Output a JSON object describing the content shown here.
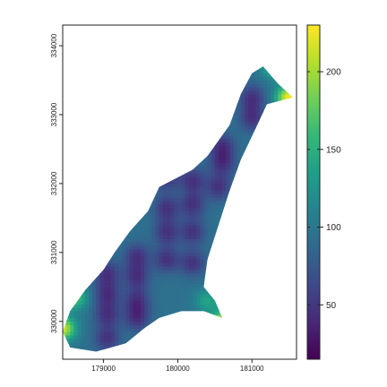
{
  "chart_data": {
    "type": "heatmap",
    "title": "",
    "xlabel": "",
    "ylabel": "",
    "xlim": [
      178450,
      181600
    ],
    "ylim": [
      329450,
      334300
    ],
    "x_ticks": [
      179000,
      180000,
      181000
    ],
    "x_tick_labels": [
      "179000",
      "180000",
      "181000"
    ],
    "y_ticks": [
      330000,
      331000,
      332000,
      333000,
      334000
    ],
    "y_tick_labels": [
      "330000",
      "331000",
      "332000",
      "333000",
      "334000"
    ],
    "colorbar": {
      "min": 15,
      "max": 230,
      "ticks": [
        50,
        100,
        150,
        200
      ],
      "tick_labels": [
        "50",
        "100",
        "150",
        "200"
      ],
      "colormap": [
        "#440154",
        "#482878",
        "#3e4989",
        "#31688e",
        "#26828e",
        "#1f9e89",
        "#35b779",
        "#6ece58",
        "#b5de2b",
        "#fde725"
      ]
    },
    "region_outline": [
      [
        178450,
        329850
      ],
      [
        178550,
        330150
      ],
      [
        178750,
        330450
      ],
      [
        179000,
        330750
      ],
      [
        179150,
        331000
      ],
      [
        179350,
        331300
      ],
      [
        179600,
        331600
      ],
      [
        179750,
        331950
      ],
      [
        180200,
        332200
      ],
      [
        180400,
        332400
      ],
      [
        180700,
        332850
      ],
      [
        180850,
        333300
      ],
      [
        181000,
        333600
      ],
      [
        181150,
        333700
      ],
      [
        181350,
        333450
      ],
      [
        181550,
        333250
      ],
      [
        181200,
        333150
      ],
      [
        181050,
        332800
      ],
      [
        180850,
        332350
      ],
      [
        180700,
        331900
      ],
      [
        180550,
        331400
      ],
      [
        180400,
        330900
      ],
      [
        180350,
        330500
      ],
      [
        180500,
        330300
      ],
      [
        180600,
        330050
      ],
      [
        180350,
        330150
      ],
      [
        180050,
        330150
      ],
      [
        179750,
        330050
      ],
      [
        179550,
        329900
      ],
      [
        179300,
        329680
      ],
      [
        178900,
        329560
      ],
      [
        178550,
        329620
      ]
    ],
    "low_points": [
      [
        179050,
        330100
      ],
      [
        179050,
        330400
      ],
      [
        179050,
        330700
      ],
      [
        179050,
        329750
      ],
      [
        179450,
        330300
      ],
      [
        179450,
        330650
      ],
      [
        179450,
        330950
      ],
      [
        179450,
        330050
      ],
      [
        179850,
        330900
      ],
      [
        179850,
        331300
      ],
      [
        179850,
        331650
      ],
      [
        179850,
        332100
      ],
      [
        180200,
        330850
      ],
      [
        180200,
        331300
      ],
      [
        180200,
        331700
      ],
      [
        180200,
        332050
      ],
      [
        180550,
        331950
      ],
      [
        180600,
        332300
      ],
      [
        180600,
        332550
      ],
      [
        181000,
        332950
      ],
      [
        181000,
        333250
      ]
    ],
    "high_points": [
      [
        178450,
        329900,
        215
      ],
      [
        178600,
        330350,
        175
      ],
      [
        181500,
        333250,
        230
      ],
      [
        181300,
        333700,
        160
      ],
      [
        180650,
        330000,
        230
      ],
      [
        180400,
        330300,
        140
      ]
    ],
    "base_value": 95,
    "low_value": 18
  }
}
